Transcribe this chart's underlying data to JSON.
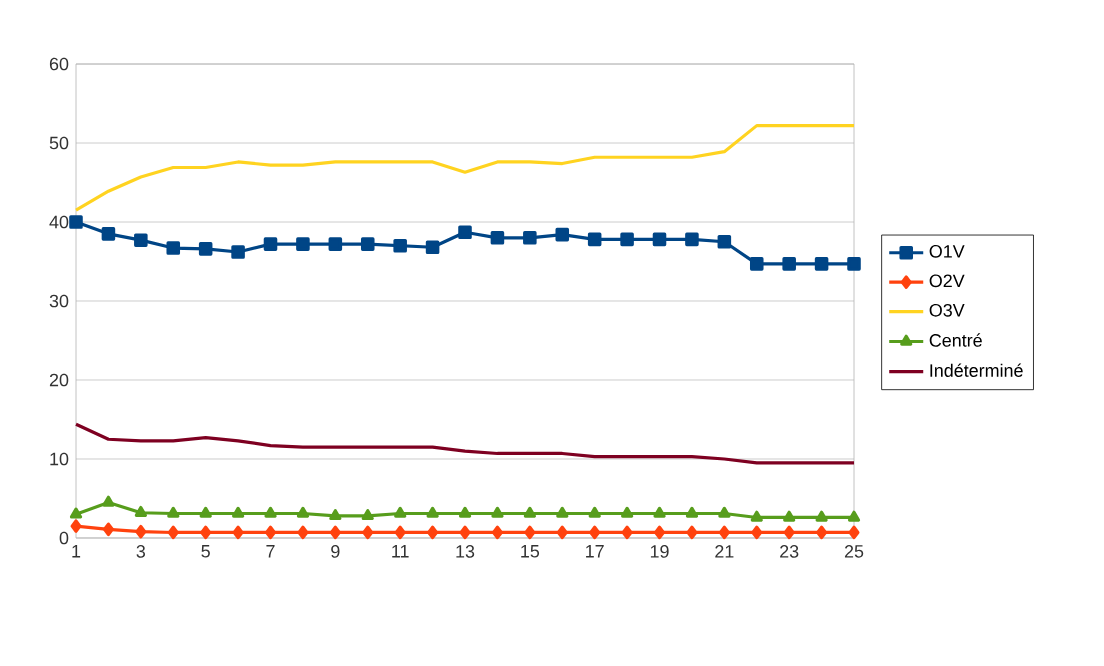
{
  "chart_data": {
    "type": "line",
    "categories": [
      "1",
      null,
      "3",
      null,
      "5",
      null,
      "7",
      null,
      "9",
      null,
      "11",
      null,
      "13",
      null,
      "15",
      null,
      "17",
      null,
      "19",
      null,
      "21",
      null,
      "23",
      null,
      "25"
    ],
    "series": [
      {
        "name": "O1V",
        "color": "#004586",
        "marker": "square",
        "values": [
          40,
          38.5,
          37.7,
          36.7,
          36.6,
          36.2,
          37.2,
          37.2,
          37.2,
          37.2,
          37,
          36.8,
          38.7,
          38,
          38,
          38.4,
          37.8,
          37.8,
          37.8,
          37.8,
          37.5,
          34.7,
          34.7,
          34.7,
          34.7
        ]
      },
      {
        "name": "O2V",
        "color": "#ff420e",
        "marker": "diamond",
        "values": [
          1.5,
          1.1,
          0.8,
          0.7,
          0.7,
          0.7,
          0.7,
          0.7,
          0.7,
          0.7,
          0.7,
          0.7,
          0.7,
          0.7,
          0.7,
          0.7,
          0.7,
          0.7,
          0.7,
          0.7,
          0.7,
          0.7,
          0.7,
          0.7,
          0.7
        ]
      },
      {
        "name": "O3V",
        "color": "#ffd320",
        "marker": "none",
        "values": [
          41.5,
          43.9,
          45.7,
          46.9,
          46.9,
          47.6,
          47.2,
          47.2,
          47.6,
          47.6,
          47.6,
          47.6,
          46.3,
          47.6,
          47.6,
          47.4,
          48.2,
          48.2,
          48.2,
          48.2,
          48.9,
          52.2,
          52.2,
          52.2,
          52.2
        ]
      },
      {
        "name": "Centré",
        "color": "#579d1c",
        "marker": "triangle",
        "values": [
          3,
          4.5,
          3.2,
          3.1,
          3.1,
          3.1,
          3.1,
          3.1,
          2.8,
          2.8,
          3.1,
          3.1,
          3.1,
          3.1,
          3.1,
          3.1,
          3.1,
          3.1,
          3.1,
          3.1,
          3.1,
          2.6,
          2.6,
          2.6,
          2.6
        ]
      },
      {
        "name": "Indéterminé",
        "color": "#7e0021",
        "marker": "none",
        "values": [
          14.4,
          12.5,
          12.3,
          12.3,
          12.7,
          12.3,
          11.7,
          11.5,
          11.5,
          11.5,
          11.5,
          11.5,
          11,
          10.7,
          10.7,
          10.7,
          10.3,
          10.3,
          10.3,
          10.3,
          10,
          9.5,
          9.5,
          9.5,
          9.5
        ]
      }
    ],
    "ylim": [
      0,
      60
    ],
    "yticks": [
      0,
      10,
      20,
      30,
      40,
      50,
      60
    ],
    "grid": "y",
    "legend": "right",
    "line_style": "solid"
  }
}
